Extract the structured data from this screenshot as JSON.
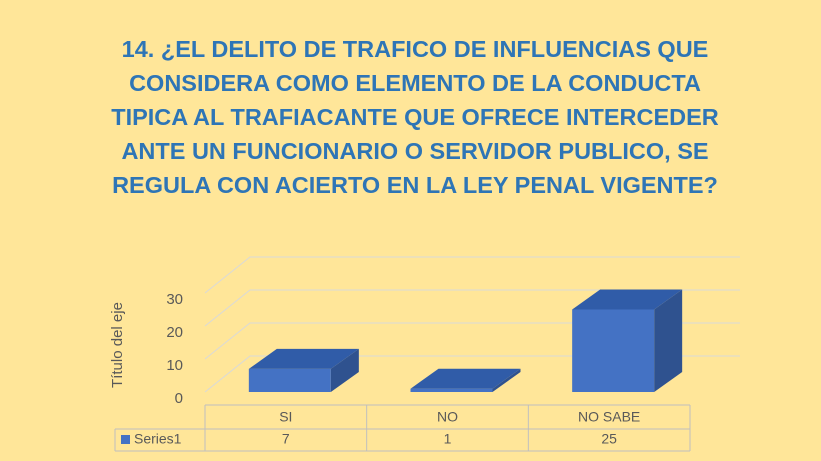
{
  "chart_data": {
    "type": "bar3d",
    "title": "14. ¿EL DELITO DE  TRAFICO DE INFLUENCIAS QUE CONSIDERA COMO ELEMENTO DE LA CONDUCTA TIPICA AL TRAFIACANTE QUE OFRECE INTERCEDER ANTE UN FUNCIONARIO O SERVIDOR PUBLICO, SE REGULA CON ACIERTO EN LA LEY PENAL VIGENTE?",
    "y_axis_label": "Título del eje",
    "categories": [
      "SI",
      "NO",
      "NO SABE"
    ],
    "series": [
      {
        "name": "Series1",
        "color": "#4472c4",
        "values": [
          7,
          1,
          25
        ]
      }
    ],
    "ylim": [
      0,
      30
    ],
    "yticks": [
      0,
      10,
      20,
      30
    ],
    "grid": true,
    "data_table": true
  }
}
